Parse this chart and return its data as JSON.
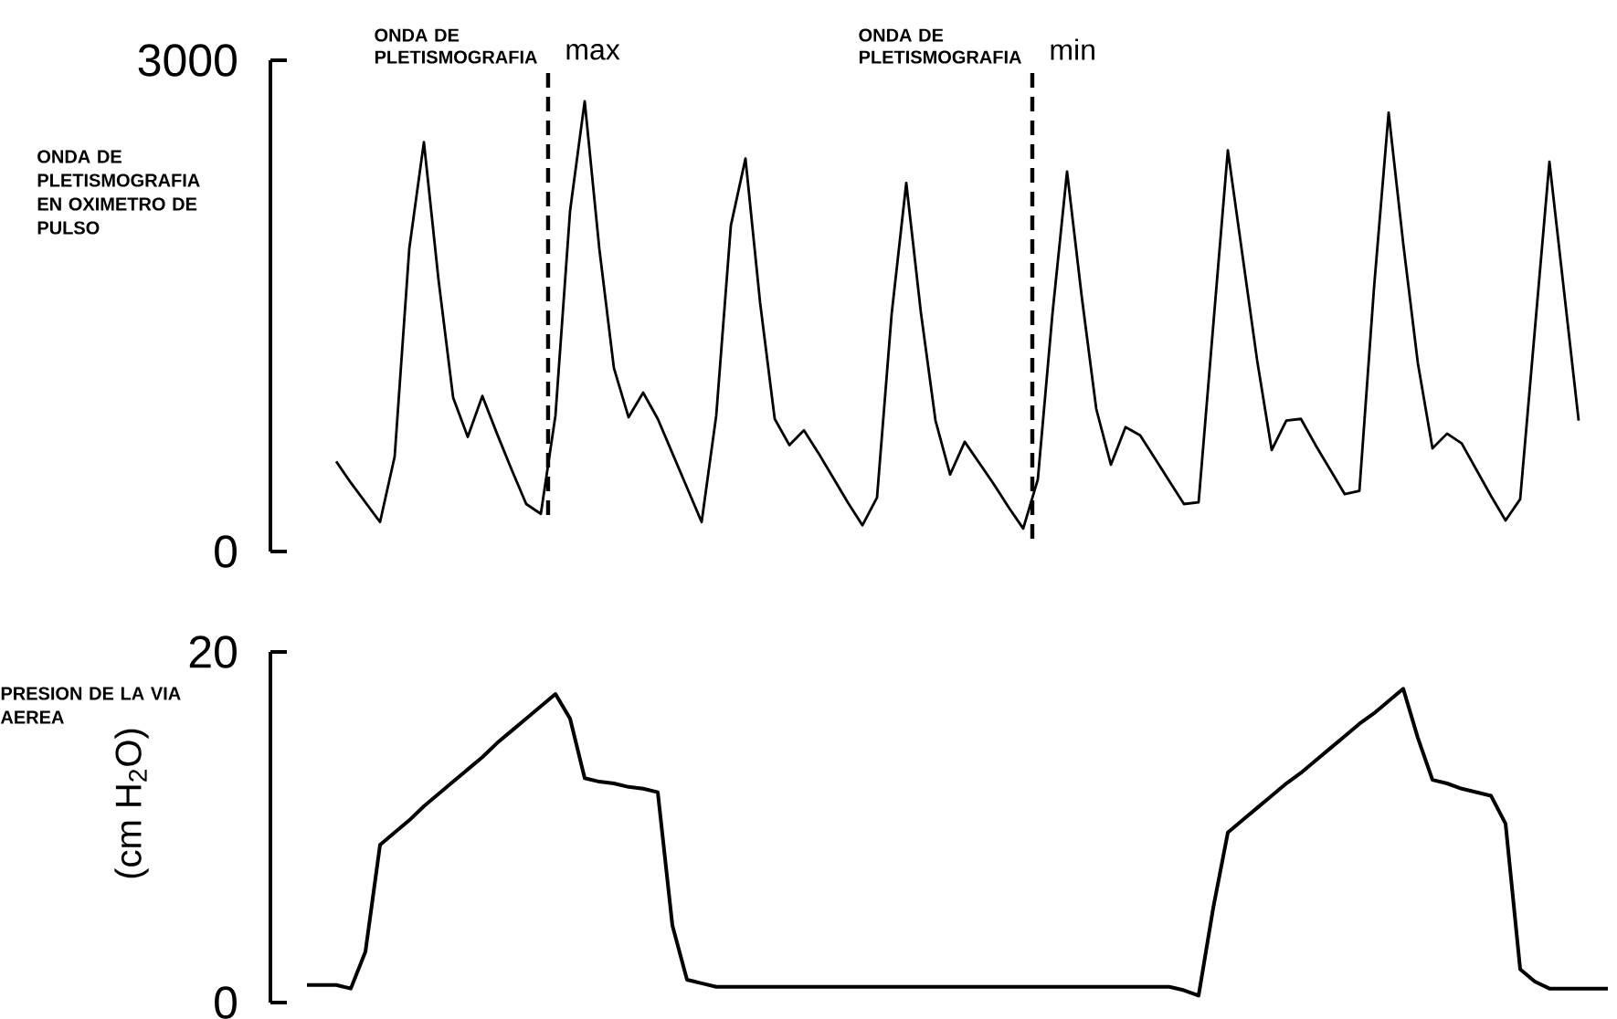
{
  "chart_data": [
    {
      "type": "line",
      "ylabel": "ONDA DE PLETISMOGRAFIA EN OXIMETRO DE PULSO",
      "color": "#000000",
      "marker": "none",
      "tick_labels": "y",
      "ylim": [
        0,
        3000
      ],
      "yticks": [
        0,
        3000
      ],
      "categories": [
        null,
        null,
        null,
        null,
        null,
        null,
        null,
        null,
        null,
        null,
        null,
        null,
        null,
        null,
        null,
        null,
        null,
        null,
        null,
        null,
        null,
        null,
        null,
        null,
        null,
        null,
        null,
        null,
        null,
        null,
        null,
        null,
        null,
        null,
        null,
        null,
        null,
        null,
        null,
        null,
        null,
        null,
        null,
        null,
        null,
        null,
        null,
        null,
        null,
        null,
        null,
        null,
        null,
        null,
        null,
        null,
        null,
        null,
        null,
        null,
        null,
        null,
        null,
        null,
        null,
        null,
        null,
        null,
        null,
        null,
        null,
        null,
        null,
        null,
        null,
        null,
        null,
        null,
        null,
        null,
        null,
        null,
        null,
        null,
        null,
        null,
        null,
        null,
        null,
        null
      ],
      "values": [
        null,
        null,
        550,
        420,
        300,
        180,
        580,
        1850,
        2500,
        1660,
        940,
        700,
        950,
        720,
        500,
        290,
        230,
        830,
        2080,
        2750,
        1850,
        1120,
        820,
        970,
        810,
        600,
        390,
        180,
        830,
        1990,
        2400,
        1520,
        810,
        650,
        740,
        600,
        450,
        300,
        160,
        330,
        1450,
        2250,
        1460,
        800,
        470,
        670,
        540,
        410,
        270,
        140,
        440,
        1450,
        2320,
        1560,
        870,
        530,
        760,
        710,
        570,
        430,
        290,
        300,
        1380,
        2450,
        1810,
        1170,
        620,
        800,
        810,
        650,
        500,
        350,
        370,
        1610,
        2680,
        1880,
        1150,
        630,
        720,
        660,
        500,
        340,
        190,
        320,
        1350,
        2380,
        1590,
        800,
        null,
        null
      ],
      "annotations": [
        "ONDA DE PLETISMOGRAFIA",
        "max",
        "ONDA DE PLETISMOGRAFIA",
        "min"
      ]
    },
    {
      "type": "line",
      "ylabel": "(cm H$_{2}$O)",
      "color": "#000000",
      "marker": "none",
      "tick_labels": "y",
      "ylim": [
        0,
        20
      ],
      "yticks": [
        0,
        20
      ],
      "categories": [
        null,
        null,
        null,
        null,
        null,
        null,
        null,
        null,
        null,
        null,
        null,
        null,
        null,
        null,
        null,
        null,
        null,
        null,
        null,
        null,
        null,
        null,
        null,
        null,
        null,
        null,
        null,
        null,
        null,
        null,
        null,
        null,
        null,
        null,
        null,
        null,
        null,
        null,
        null,
        null,
        null,
        null,
        null,
        null,
        null,
        null,
        null,
        null,
        null,
        null,
        null,
        null,
        null,
        null,
        null,
        null,
        null,
        null,
        null,
        null,
        null,
        null,
        null,
        null,
        null,
        null,
        null,
        null,
        null,
        null,
        null,
        null,
        null,
        null,
        null,
        null,
        null,
        null,
        null,
        null,
        null,
        null,
        null,
        null,
        null,
        null,
        null,
        null,
        null,
        null
      ],
      "values": [
        1.0,
        1.0,
        1.0,
        0.8,
        2.9,
        9.0,
        9.7,
        10.4,
        11.2,
        11.9,
        12.6,
        13.3,
        14.0,
        14.8,
        15.5,
        16.2,
        16.9,
        17.6,
        16.2,
        12.8,
        12.6,
        12.5,
        12.3,
        12.2,
        12.0,
        4.4,
        1.3,
        1.1,
        0.9,
        0.9,
        0.9,
        0.9,
        0.9,
        0.9,
        0.9,
        0.9,
        0.9,
        0.9,
        0.9,
        0.9,
        0.9,
        0.9,
        0.9,
        0.9,
        0.9,
        0.9,
        0.9,
        0.9,
        0.9,
        0.9,
        0.9,
        0.9,
        0.9,
        0.9,
        0.9,
        0.9,
        0.9,
        0.9,
        0.9,
        0.9,
        0.7,
        0.4,
        5.4,
        9.7,
        10.4,
        11.1,
        11.8,
        12.5,
        13.1,
        13.8,
        14.5,
        15.2,
        15.9,
        16.5,
        17.2,
        17.9,
        15.1,
        12.7,
        12.5,
        12.2,
        12.0,
        11.8,
        10.2,
        1.9,
        1.2,
        0.8,
        0.8,
        0.8,
        0.8,
        0.8
      ],
      "annotations": [
        "PRESION DE LA VIA AEREA"
      ]
    }
  ]
}
